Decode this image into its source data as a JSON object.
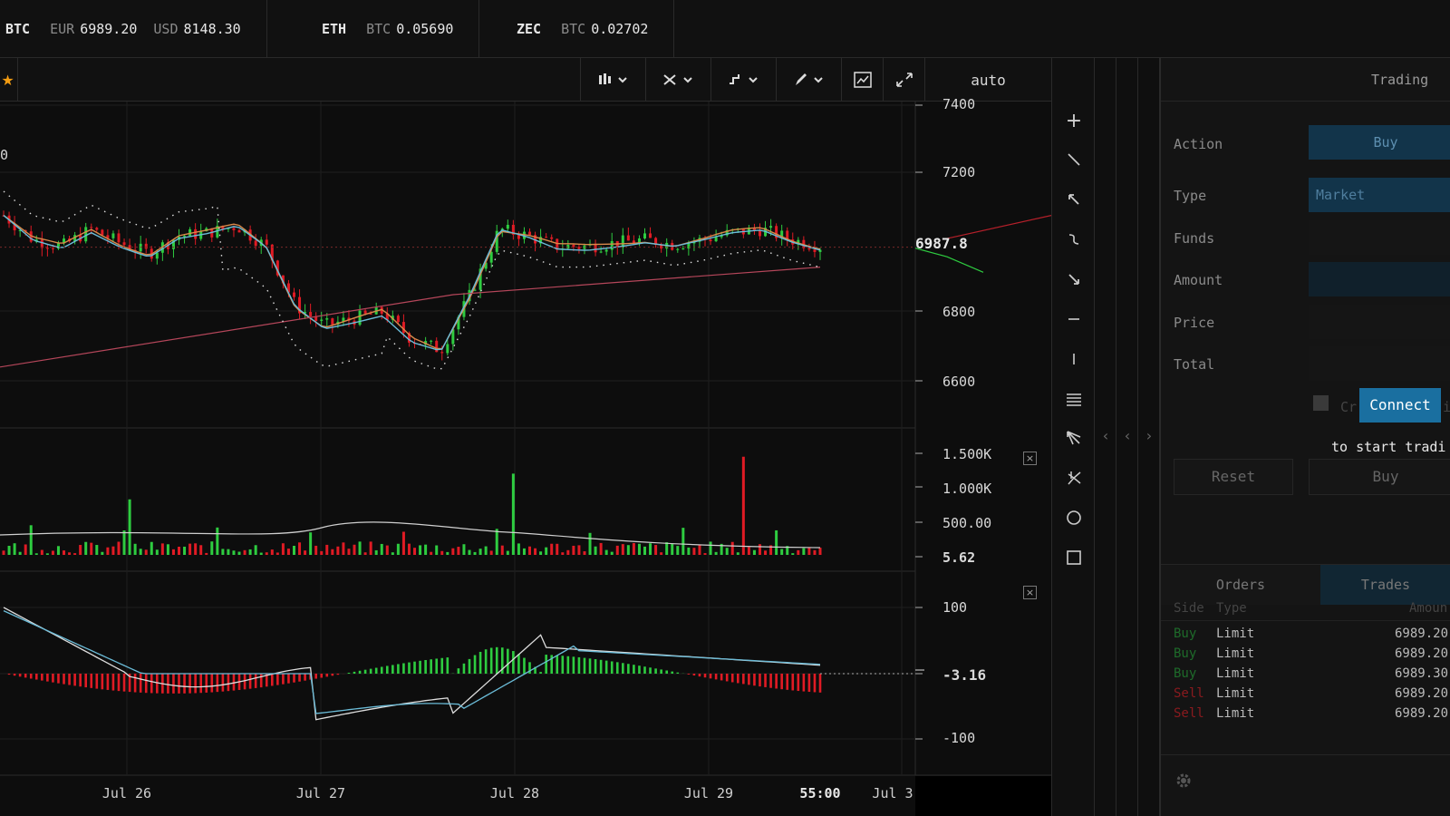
{
  "tickers": [
    {
      "symbol": "BTC",
      "pairs": [
        {
          "ccy": "EUR",
          "value": "6989.20"
        },
        {
          "ccy": "USD",
          "value": "8148.30"
        }
      ]
    },
    {
      "symbol": "ETH",
      "pairs": [
        {
          "ccy": "BTC",
          "value": "0.05690"
        }
      ]
    },
    {
      "symbol": "ZEC",
      "pairs": [
        {
          "ccy": "BTC",
          "value": "0.02702"
        }
      ]
    }
  ],
  "toolbar": {
    "favorite_icon": "star-icon",
    "chart_type_icon": "candles-icon",
    "indicators_icon": "indicator-icon",
    "compare_icon": "compare-icon",
    "draw_icon": "pencil-icon",
    "screenshot_icon": "chart-image-icon",
    "fullscreen_icon": "expand-icon",
    "scale": "auto"
  },
  "chart": {
    "left_edge_label": "0",
    "price_axis": [
      "7400",
      "7200",
      "6800",
      "6600"
    ],
    "last_price": "6987.8",
    "volume_axis": [
      "1.500K",
      "1.000K",
      "500.00",
      "5.62"
    ],
    "macd_axis": [
      "100",
      "-3.16",
      "-100"
    ],
    "close_icon": "×",
    "dates": [
      "Jul 26",
      "Jul 27",
      "Jul 28",
      "Jul 29",
      "55:00",
      "Jul 3"
    ]
  },
  "chart_data": {
    "type": "candlestick",
    "x": [
      "Jul 26",
      "Jul 27",
      "Jul 28",
      "Jul 29"
    ],
    "price": {
      "ylim": [
        6550,
        7420
      ],
      "last": 6987.8,
      "close_series": [
        7080,
        7010,
        6990,
        7040,
        7000,
        6970,
        7020,
        7030,
        7050,
        6990,
        6820,
        6760,
        6780,
        6800,
        6720,
        6690,
        6850,
        7040,
        7020,
        6990,
        6990,
        7000,
        7010,
        6995,
        7010,
        7030,
        7040,
        7010,
        6990
      ]
    },
    "volume": {
      "ylim": [
        0,
        1600
      ],
      "last": 5.62
    },
    "macd": {
      "ylim": [
        -130,
        130
      ],
      "last": -3.16
    }
  },
  "drawtools": [
    "crosshair-icon",
    "trendline-icon",
    "arrow-icon",
    "curve-icon",
    "ray-icon",
    "horizontal-line-icon",
    "vertical-line-icon",
    "fibonacci-icon",
    "pitchfork-icon",
    "gann-icon",
    "circle-icon",
    "rectangle-icon"
  ],
  "collapse": [
    "‹",
    "‹",
    "›"
  ],
  "trading": {
    "title": "Trading",
    "action_label": "Action",
    "action_value": "Buy",
    "type_label": "Type",
    "type_value": "Market",
    "funds_label": "Funds",
    "amount_label": "Amount",
    "price_label": "Price",
    "total_label": "Total",
    "checkbox_text": "Cr",
    "checkbox_tail": "i",
    "connect": "Connect",
    "connect_sub": "to start tradi",
    "reset": "Reset",
    "buy": "Buy"
  },
  "orders": {
    "tab_orders": "Orders",
    "tab_trades": "Trades",
    "col_side": "Side",
    "col_type": "Type",
    "col_amount": "Amoun",
    "rows": [
      {
        "side": "Buy",
        "type": "Limit",
        "amount": "6989.20"
      },
      {
        "side": "Buy",
        "type": "Limit",
        "amount": "6989.20"
      },
      {
        "side": "Buy",
        "type": "Limit",
        "amount": "6989.30"
      },
      {
        "side": "Sell",
        "type": "Limit",
        "amount": "6989.20"
      },
      {
        "side": "Sell",
        "type": "Limit",
        "amount": "6989.20"
      }
    ],
    "settings_icon": "gear-icon"
  },
  "colors": {
    "up": "#2ecc40",
    "down": "#e01b24",
    "accent": "#1a6fa0",
    "ma_fast": "#d9894a",
    "ma_slow": "#6bbcd8",
    "ma_long": "#b5465a"
  }
}
